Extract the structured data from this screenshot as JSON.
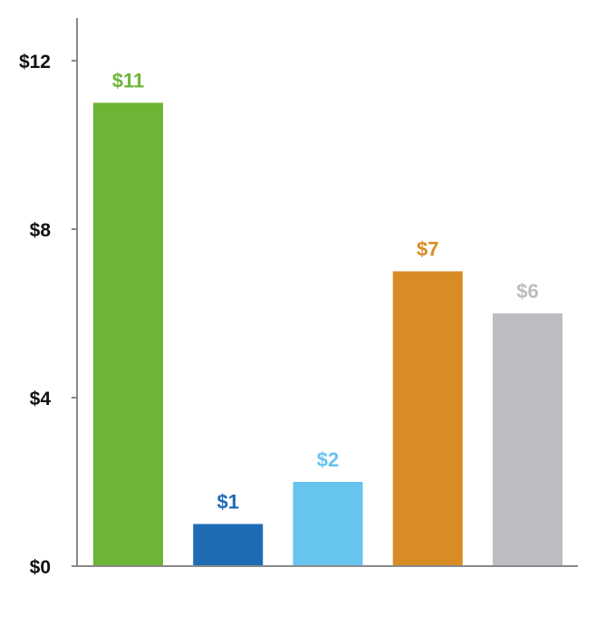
{
  "chart_data": {
    "type": "bar",
    "categories": [
      "",
      "",
      "",
      "",
      ""
    ],
    "values": [
      11,
      1,
      2,
      7,
      6
    ],
    "value_labels": [
      "$11",
      "$1",
      "$2",
      "$7",
      "$6"
    ],
    "colors": [
      "#6db535",
      "#1f6cb5",
      "#66c4ef",
      "#d98b26",
      "#bcbdc0"
    ],
    "yticks": [
      0,
      4,
      8,
      12
    ],
    "ytick_labels": [
      "$0",
      "$4",
      "$8",
      "$12"
    ],
    "ylim": [
      0,
      13
    ],
    "title": "",
    "xlabel": "",
    "ylabel": "",
    "grid": false,
    "legend": "none"
  }
}
